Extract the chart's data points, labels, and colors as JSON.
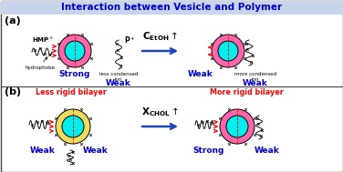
{
  "title": "Interaction between Vesicle and Polymer",
  "title_color": "#0000CC",
  "title_bg": "#c8d4ea",
  "panel_a_label": "(a)",
  "panel_b_label": "(b)",
  "arrow_color": "#2244BB",
  "blue_label_color": "#0000CC",
  "cyan_inner": "#00EEEE",
  "pink_bilayer": "#FF66AA",
  "yellow_bilayer": "#EEDC60",
  "strong_label": "Strong",
  "weak_label": "Weak",
  "less_rigid": "Less rigid bilayer",
  "more_rigid": "More rigid bilayer",
  "bg_color": "#FFFFFF",
  "fig_w": 3.76,
  "fig_h": 1.89,
  "dpi": 100
}
